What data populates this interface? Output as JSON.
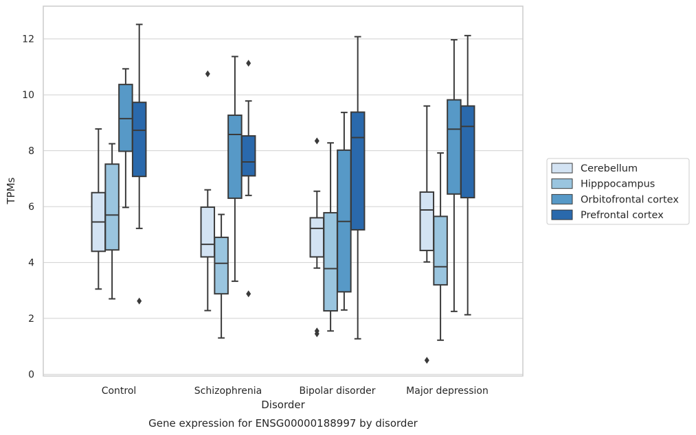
{
  "chart_data": {
    "type": "box",
    "xlabel": "Disorder",
    "ylabel": "TPMs",
    "caption": "Gene expression for ENSG00000188997 by disorder",
    "categories": [
      "Control",
      "Schizophrenia",
      "Bipolar disorder",
      "Major depression"
    ],
    "ylim": [
      -0.1,
      13.1
    ],
    "yticks": [
      "0",
      "2",
      "4",
      "6",
      "8",
      "10",
      "12"
    ],
    "grid": "horizontal",
    "legend_position": "right",
    "series": [
      {
        "name": "Cerebellum",
        "color": "#d3e3f3",
        "boxes": [
          {
            "whisker_low": 3.05,
            "q1": 4.4,
            "median": 5.45,
            "q3": 6.5,
            "whisker_high": 8.78,
            "outliers": []
          },
          {
            "whisker_low": 2.28,
            "q1": 4.2,
            "median": 4.65,
            "q3": 5.98,
            "whisker_high": 6.6,
            "outliers": [
              10.75
            ]
          },
          {
            "whisker_low": 3.8,
            "q1": 4.2,
            "median": 5.22,
            "q3": 5.6,
            "whisker_high": 6.55,
            "outliers": [
              8.35,
              1.55,
              1.45
            ]
          },
          {
            "whisker_low": 4.02,
            "q1": 4.43,
            "median": 5.88,
            "q3": 6.52,
            "whisker_high": 9.6,
            "outliers": [
              0.5
            ]
          }
        ]
      },
      {
        "name": "Hipppocampus",
        "color": "#9ac5df",
        "boxes": [
          {
            "whisker_low": 2.7,
            "q1": 4.45,
            "median": 5.7,
            "q3": 7.52,
            "whisker_high": 8.25,
            "outliers": []
          },
          {
            "whisker_low": 1.3,
            "q1": 2.88,
            "median": 3.97,
            "q3": 4.9,
            "whisker_high": 5.72,
            "outliers": []
          },
          {
            "whisker_low": 1.55,
            "q1": 2.27,
            "median": 3.78,
            "q3": 5.78,
            "whisker_high": 8.28,
            "outliers": []
          },
          {
            "whisker_low": 1.22,
            "q1": 3.2,
            "median": 3.85,
            "q3": 5.65,
            "whisker_high": 7.92,
            "outliers": []
          }
        ]
      },
      {
        "name": "Orbitofrontal cortex",
        "color": "#5799c7",
        "boxes": [
          {
            "whisker_low": 5.97,
            "q1": 7.98,
            "median": 9.15,
            "q3": 10.37,
            "whisker_high": 10.93,
            "outliers": []
          },
          {
            "whisker_low": 3.33,
            "q1": 6.3,
            "median": 8.58,
            "q3": 9.27,
            "whisker_high": 11.37,
            "outliers": []
          },
          {
            "whisker_low": 2.3,
            "q1": 2.95,
            "median": 5.47,
            "q3": 8.02,
            "whisker_high": 9.37,
            "outliers": []
          },
          {
            "whisker_low": 2.25,
            "q1": 6.45,
            "median": 8.77,
            "q3": 9.82,
            "whisker_high": 11.97,
            "outliers": []
          }
        ]
      },
      {
        "name": "Prefrontal cortex",
        "color": "#2a69ac",
        "boxes": [
          {
            "whisker_low": 5.22,
            "q1": 7.08,
            "median": 8.73,
            "q3": 9.73,
            "whisker_high": 12.52,
            "outliers": [
              2.62
            ]
          },
          {
            "whisker_low": 6.4,
            "q1": 7.1,
            "median": 7.6,
            "q3": 8.53,
            "whisker_high": 9.78,
            "outliers": [
              11.13,
              2.88
            ]
          },
          {
            "whisker_low": 1.27,
            "q1": 5.17,
            "median": 8.47,
            "q3": 9.38,
            "whisker_high": 12.08,
            "outliers": []
          },
          {
            "whisker_low": 2.13,
            "q1": 6.32,
            "median": 8.87,
            "q3": 9.6,
            "whisker_high": 12.12,
            "outliers": []
          }
        ]
      }
    ]
  }
}
